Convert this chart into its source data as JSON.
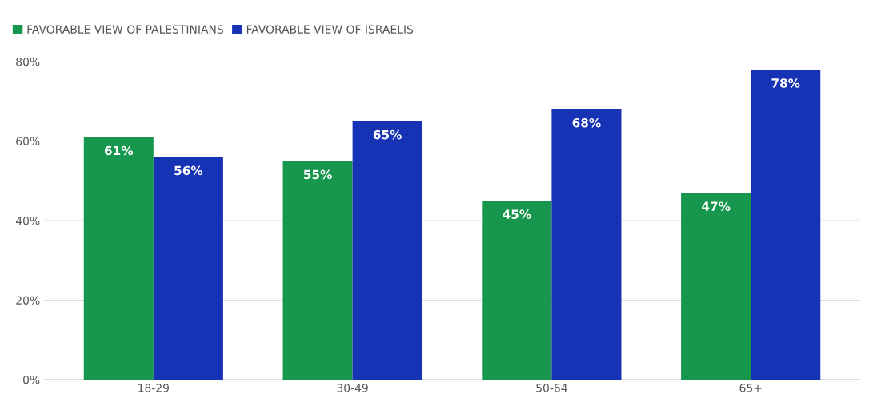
{
  "chart_data": {
    "type": "bar",
    "categories": [
      "18-29",
      "30-49",
      "50-64",
      "65+"
    ],
    "series": [
      {
        "name": "FAVORABLE VIEW OF PALESTINIANS",
        "color": "#17964e",
        "values": [
          61,
          55,
          45,
          47
        ],
        "value_labels": [
          "61%",
          "55%",
          "45%",
          "47%"
        ]
      },
      {
        "name": "FAVORABLE VIEW OF ISRAELIS",
        "color": "#1632b5",
        "values": [
          56,
          65,
          68,
          78
        ],
        "value_labels": [
          "56%",
          "65%",
          "68%",
          "78%"
        ]
      }
    ],
    "ylim": [
      0,
      80
    ],
    "yticks": [
      {
        "value": 0,
        "label": "0%"
      },
      {
        "value": 20,
        "label": "20%"
      },
      {
        "value": 40,
        "label": "40%"
      },
      {
        "value": 60,
        "label": "60%"
      },
      {
        "value": 80,
        "label": "80%"
      }
    ],
    "grid": "y",
    "legend": "top left"
  }
}
